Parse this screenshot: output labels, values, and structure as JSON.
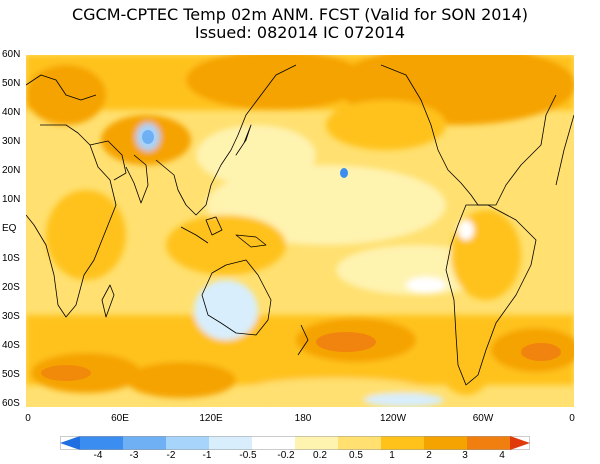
{
  "title": {
    "line1": "CGCM-CPTEC Temp 02m ANM. FCST  (Valid for SON 2014)",
    "line2": "Issued:  082014 IC 072014"
  },
  "lat_labels": [
    "60N",
    "50N",
    "40N",
    "30N",
    "20N",
    "10N",
    "EQ",
    "10S",
    "20S",
    "30S",
    "40S",
    "50S",
    "60S"
  ],
  "lon_labels": [
    "0",
    "60E",
    "120E",
    "180",
    "120W",
    "60W",
    "0"
  ],
  "colorbar": {
    "labels": [
      "-4",
      "-3",
      "-2",
      "-1",
      "-0.5",
      "-0.2",
      "0.2",
      "0.5",
      "1",
      "2",
      "3",
      "4"
    ],
    "colors": [
      "#1f6fe0",
      "#3c8df0",
      "#6fb0f5",
      "#a7d4fa",
      "#d8eefc",
      "#ffffff",
      "#fff3b0",
      "#ffe070",
      "#ffc21a",
      "#f5a300",
      "#f07f10",
      "#e03a0a"
    ]
  }
}
